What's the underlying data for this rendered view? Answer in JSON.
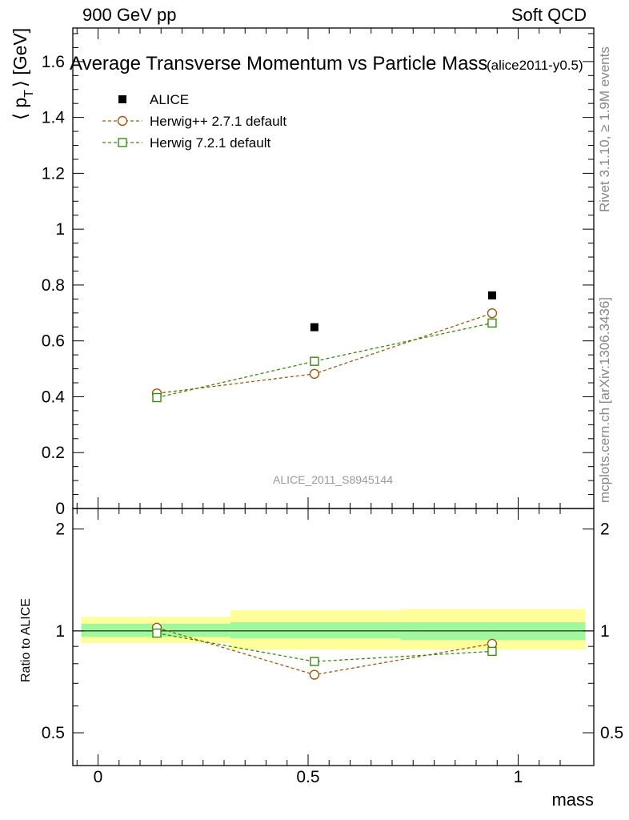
{
  "header": {
    "left": "900 GeV pp",
    "right": "Soft QCD"
  },
  "side_labels": {
    "rivet": "Rivet 3.1.10, ≥ 1.9M events",
    "mcplots": "mcplots.cern.ch [arXiv:1306.3436]"
  },
  "chart_data": [
    {
      "type": "scatter",
      "title": "Average Transverse Momentum vs Particle Mass",
      "subtitle": "(alice2011-y0.5)",
      "ylabel": "⟨ p_T ⟩ [GeV]",
      "ylabel_parts": {
        "main": "⟨ p",
        "sub": "T",
        "rest": "⟩ [GeV]"
      },
      "xlabel": "",
      "xlim": [
        -0.06,
        1.18
      ],
      "ylim": [
        0,
        1.72
      ],
      "yticks": [
        "0",
        "0.2",
        "0.4",
        "0.6",
        "0.8",
        "1",
        "1.2",
        "1.4",
        "1.6"
      ],
      "yticks_values": [
        0,
        0.2,
        0.4,
        0.6,
        0.8,
        1.0,
        1.2,
        1.4,
        1.6
      ],
      "legend_position": "top-left",
      "watermark": "ALICE_2011_S8945144",
      "series": [
        {
          "name": "ALICE",
          "style": "filled-square",
          "color": "#000000",
          "x": [
            0.14,
            0.515,
            0.938
          ],
          "y": [
            0.403,
            0.649,
            0.763
          ]
        },
        {
          "name": "Herwig++ 2.7.1 default",
          "style": "open-circle-dashed",
          "color": "#9c5a10",
          "x": [
            0.14,
            0.515,
            0.938
          ],
          "y": [
            0.412,
            0.482,
            0.699
          ]
        },
        {
          "name": "Herwig 7.2.1 default",
          "style": "open-square-dashed",
          "color": "#3a8a10",
          "x": [
            0.14,
            0.515,
            0.938
          ],
          "y": [
            0.397,
            0.527,
            0.664
          ]
        }
      ]
    },
    {
      "type": "line",
      "ylabel": "Ratio to ALICE",
      "xlabel": "mass",
      "xlim": [
        -0.06,
        1.18
      ],
      "ylim": [
        0.4,
        2.3
      ],
      "log_y": true,
      "yticks": [
        "0.5",
        "1",
        "2"
      ],
      "yticks_values": [
        0.5,
        1,
        2
      ],
      "xticks": [
        "0",
        "0.5",
        "1"
      ],
      "xticks_values": [
        0,
        0.5,
        1
      ],
      "uncertainty_bands": [
        {
          "x_range": [
            -0.04,
            0.315
          ],
          "inner": [
            0.96,
            1.05
          ],
          "outer": [
            0.92,
            1.1
          ]
        },
        {
          "x_range": [
            0.315,
            0.72
          ],
          "inner": [
            0.95,
            1.06
          ],
          "outer": [
            0.88,
            1.15
          ]
        },
        {
          "x_range": [
            0.72,
            1.16
          ],
          "inner": [
            0.94,
            1.06
          ],
          "outer": [
            0.88,
            1.16
          ]
        }
      ],
      "band_colors": {
        "inner": "#a0f89c",
        "outer": "#fefe9a"
      },
      "series": [
        {
          "name": "Herwig++ 2.7.1 default",
          "color": "#9c5a10",
          "style": "open-circle-dashed",
          "x": [
            0.14,
            0.515,
            0.938
          ],
          "y": [
            1.022,
            0.742,
            0.916
          ]
        },
        {
          "name": "Herwig 7.2.1 default",
          "color": "#3a8a10",
          "style": "open-square-dashed",
          "x": [
            0.14,
            0.515,
            0.938
          ],
          "y": [
            0.985,
            0.812,
            0.87
          ]
        }
      ]
    }
  ]
}
